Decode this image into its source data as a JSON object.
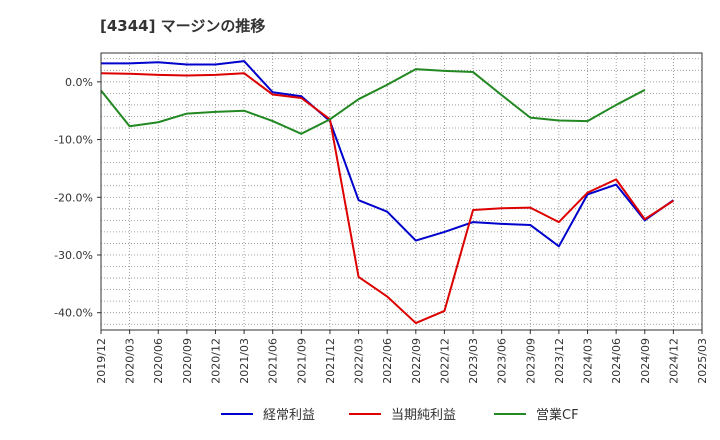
{
  "title": "[4344]  マージンの推移",
  "chart_data": {
    "type": "line",
    "title": "[4344]  マージンの推移",
    "xlabel": "",
    "ylabel": "",
    "x": [
      "2019/12",
      "2020/03",
      "2020/06",
      "2020/09",
      "2020/12",
      "2021/03",
      "2021/06",
      "2021/09",
      "2021/12",
      "2022/03",
      "2022/06",
      "2022/09",
      "2022/12",
      "2023/03",
      "2023/06",
      "2023/09",
      "2023/12",
      "2024/03",
      "2024/06",
      "2024/09",
      "2024/12",
      "2025/03"
    ],
    "y_ticks": [
      0,
      -10,
      -20,
      -30,
      -40
    ],
    "y_tick_labels": [
      "0.0%",
      "-10.0%",
      "-20.0%",
      "-30.0%",
      "-40.0%"
    ],
    "ylim": [
      -43,
      5
    ],
    "grid": true,
    "legend_position": "bottom",
    "series": [
      {
        "name": "経常利益",
        "color": "#0000cc",
        "values": [
          3.2,
          3.2,
          3.4,
          3.0,
          3.0,
          3.6,
          -1.8,
          -2.5,
          -6.8,
          -20.5,
          -22.5,
          -27.5,
          -26.0,
          -24.3,
          -24.6,
          -24.8,
          -28.5,
          -19.5,
          -17.8,
          -24.0,
          -20.5,
          null
        ]
      },
      {
        "name": "当期純利益",
        "color": "#dd0000",
        "values": [
          1.5,
          1.4,
          1.2,
          1.1,
          1.2,
          1.5,
          -2.2,
          -2.8,
          -6.5,
          -33.8,
          -37.2,
          -41.8,
          -39.7,
          -22.2,
          -21.9,
          -21.8,
          -24.3,
          -19.2,
          -16.9,
          -23.8,
          -20.6,
          null
        ]
      },
      {
        "name": "営業CF",
        "color": "#228822",
        "values": [
          -1.5,
          -7.7,
          -7.0,
          -5.5,
          -5.2,
          -5.0,
          -6.8,
          -9.0,
          -6.5,
          -3.0,
          -0.5,
          2.2,
          1.9,
          1.7,
          -2.3,
          -6.2,
          -6.7,
          -6.8,
          -4.0,
          -1.4,
          null,
          null
        ]
      }
    ]
  }
}
